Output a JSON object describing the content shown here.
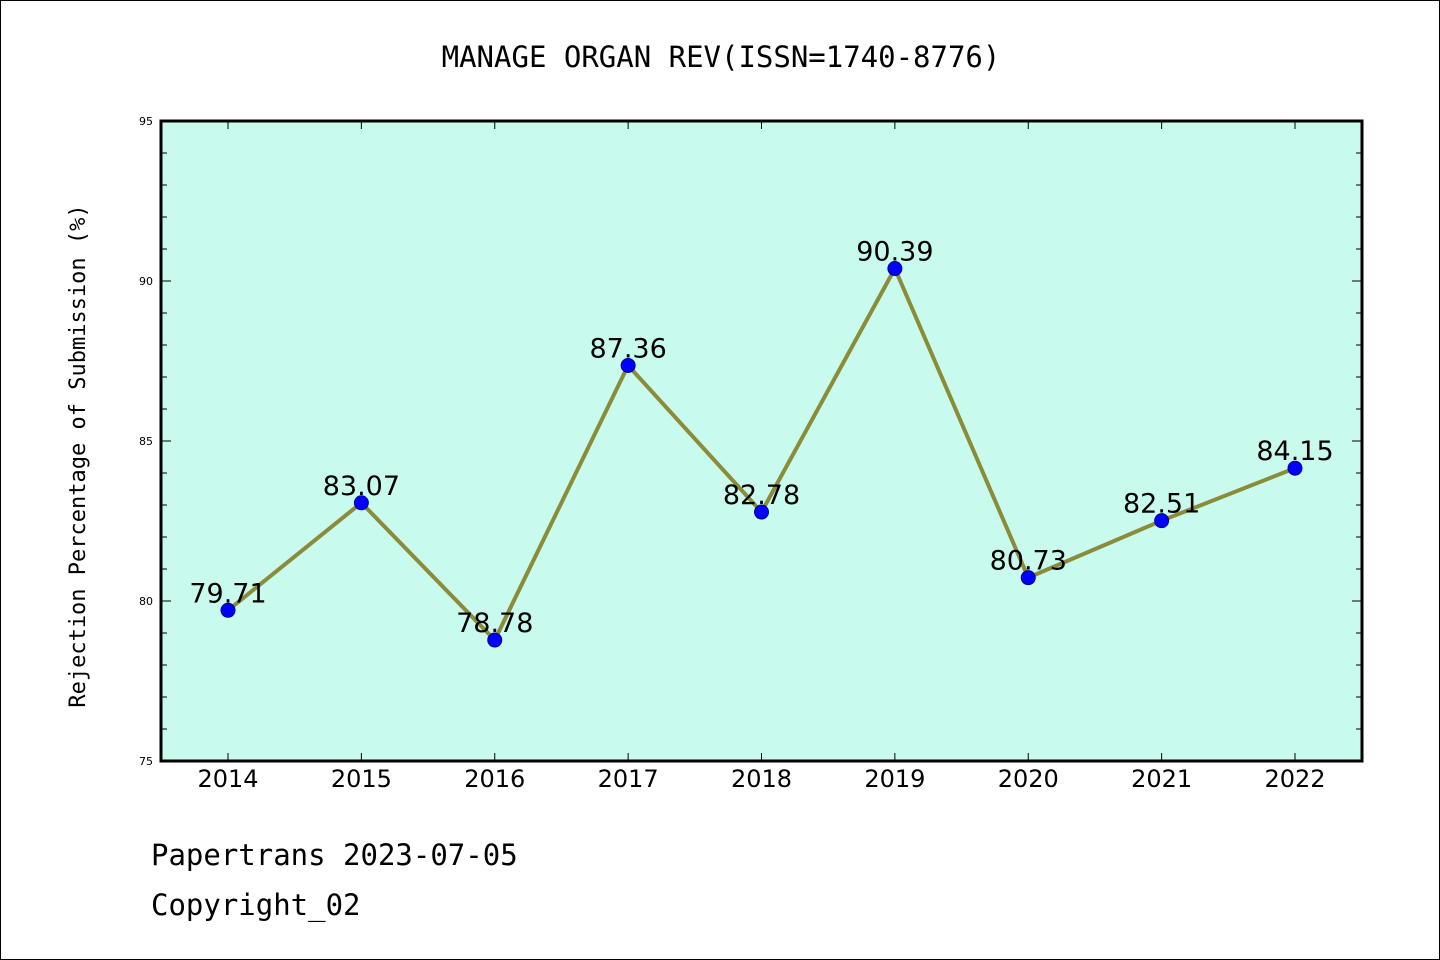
{
  "chart_data": {
    "type": "line",
    "title": "MANAGE ORGAN REV(ISSN=1740-8776)",
    "xlabel": "",
    "ylabel": "Rejection Percentage of Submission (%)",
    "categories": [
      "2014",
      "2015",
      "2016",
      "2017",
      "2018",
      "2019",
      "2020",
      "2021",
      "2022"
    ],
    "series": [
      {
        "values": [
          79.71,
          83.07,
          78.78,
          87.36,
          82.78,
          90.39,
          80.73,
          82.51,
          84.15
        ],
        "labels": [
          "79.71",
          "83.07",
          "78.78",
          "87.36",
          "82.78",
          "90.39",
          "80.73",
          "82.51",
          "84.15"
        ]
      }
    ],
    "ylim": [
      75,
      95
    ],
    "yticks": [
      "75",
      "80",
      "85",
      "90",
      "95"
    ],
    "grid": false,
    "legend": "none",
    "colors": {
      "plot_background": "#c8fbee",
      "line": "#8b8b3a",
      "marker": "#0000ff"
    }
  },
  "footer": {
    "line1": "Papertrans 2023-07-05",
    "line2": "Copyright_02"
  }
}
